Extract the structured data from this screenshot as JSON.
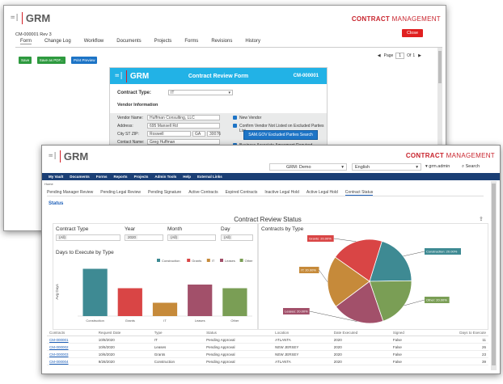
{
  "back": {
    "logo": "GRM",
    "brand_bold": "CONTRACT",
    "brand_light": "MANAGEMENT",
    "record": "CM-000001 Rev 3",
    "close_label": "Close",
    "tabs": [
      "Form",
      "Change Log",
      "Workflow",
      "Documents",
      "Projects",
      "Forms",
      "Revisions",
      "History"
    ],
    "buttons": [
      "Save",
      "Save as PDF...",
      "Print Preview"
    ],
    "pager": {
      "label": "Page",
      "current": "1",
      "of": "Of",
      "total": "1"
    },
    "form": {
      "logo": "GRM",
      "title": "Contract Review Form",
      "id": "CM-000001",
      "contract_type_label": "Contract Type:",
      "contract_type_value": "IT",
      "section": "Vendor Information",
      "vendor_name_label": "Vendor Name:",
      "vendor_name": "Huffman Consulting, LLC",
      "address_label": "Address:",
      "address": "695 Mansell Rd",
      "city_label": "City ST ZIP:",
      "city": "Roswell",
      "state": "GA",
      "zip": "30076",
      "contact_label": "Contact Name:",
      "contact": "Greg Huffman",
      "new_vendor": "New Vendor",
      "confirm_vendor": "Confirm Vendor Not Listed on Excluded Parties List",
      "sam_button": "SAM.GOV Excluded Parties Search",
      "baa": "Business Associate Agreement Required"
    }
  },
  "front": {
    "logo": "GRM",
    "brand_bold": "CONTRACT",
    "brand_light": "MANAGEMENT",
    "org_select": "GRM: Demo",
    "lang_select": "English",
    "user": "grm.admin",
    "search_label": "Search",
    "nav": [
      "My Vault",
      "Documents",
      "Forms",
      "Reports",
      "Projects",
      "Admin Tools",
      "Help",
      "External Links"
    ],
    "crumb": "Home",
    "tabs": [
      "Pending Manager Review",
      "Pending Legal Review",
      "Pending Signature",
      "Active Contracts",
      "Expired Contracts",
      "Inactive Legal Hold",
      "Active Legal Hold",
      "Contract Status"
    ],
    "section_title": "Status",
    "dash_title": "Contract Review Status",
    "filters": [
      {
        "label": "Contract Type",
        "value": "(All)"
      },
      {
        "label": "Year",
        "value": "2020"
      },
      {
        "label": "Month",
        "value": "(All)"
      },
      {
        "label": "Day",
        "value": "(All)"
      }
    ],
    "table": {
      "headers": [
        "Contracts",
        "Request Date",
        "Type",
        "Status",
        "Location",
        "Date Executed",
        "Signed",
        "Days to Execute"
      ],
      "rows": [
        [
          "CM-000001",
          "10/8/2020",
          "IT",
          "Pending Approval",
          "ATLANTA",
          "2020",
          "False",
          "11"
        ],
        [
          "CM-000002",
          "10/6/2020",
          "Leases",
          "Pending Approval",
          "NEW JERSEY",
          "2020",
          "False",
          "26"
        ],
        [
          "CM-000003",
          "10/6/2020",
          "Grants",
          "Pending Approval",
          "NEW JERSEY",
          "2020",
          "False",
          "23"
        ],
        [
          "CM-000004",
          "9/28/2020",
          "Construction",
          "Pending Approval",
          "ATLANTA",
          "2020",
          "False",
          "39"
        ]
      ]
    }
  },
  "chart_data": [
    {
      "type": "bar",
      "title": "Days to Execute by Type",
      "ylabel": "Avg Days",
      "categories": [
        "Construction",
        "Grants",
        "IT",
        "Leases",
        "Other"
      ],
      "values": [
        39,
        23,
        11,
        26,
        23
      ],
      "colors": [
        "#3e8a93",
        "#d94545",
        "#c68a3a",
        "#a2506a",
        "#7a9e55"
      ],
      "ylim": [
        0,
        40
      ],
      "legend": [
        "Construction",
        "Grants",
        "IT",
        "Leases",
        "Other"
      ]
    },
    {
      "type": "pie",
      "title": "Contracts by Type",
      "labels": [
        "Construction",
        "Other",
        "Leases",
        "IT",
        "Grants"
      ],
      "display_labels": [
        "Construction: 20.00%",
        "Other: 20.00%",
        "Leases: 20.00%",
        "IT: 20.00%",
        "Grants: 20.00%"
      ],
      "values": [
        20,
        20,
        20,
        20,
        20
      ],
      "colors": [
        "#3e8a93",
        "#7a9e55",
        "#a2506a",
        "#c68a3a",
        "#d94545"
      ]
    }
  ]
}
